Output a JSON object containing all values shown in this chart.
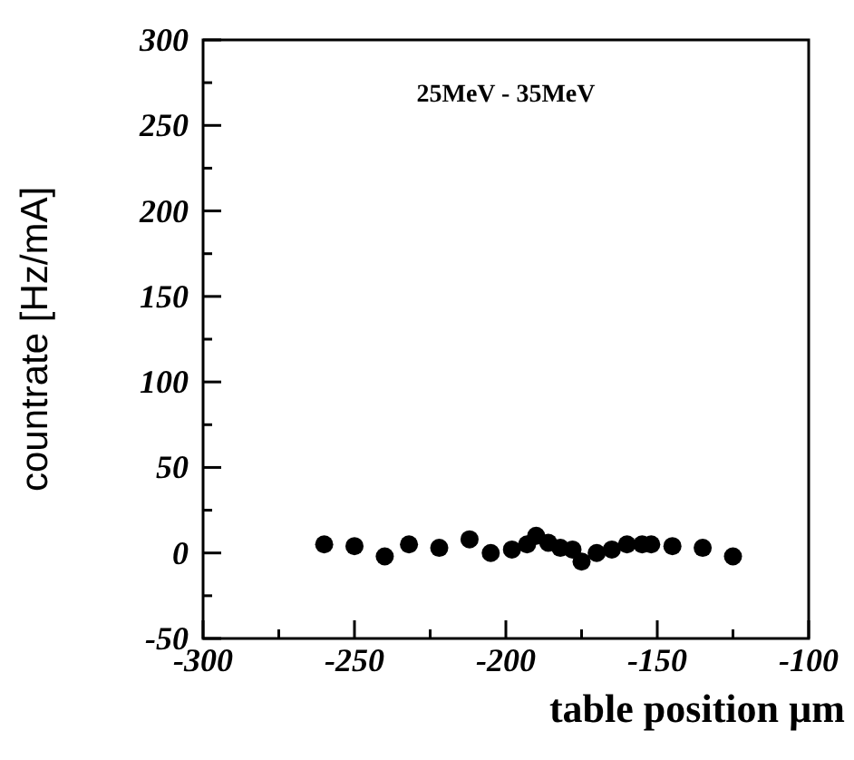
{
  "chart_data": {
    "type": "scatter",
    "xlabel": "table position µm",
    "ylabel": "countrate [Hz/mA]",
    "annotations": [
      "25MeV - 35MeV"
    ],
    "x": [
      -260,
      -250,
      -240,
      -232,
      -222,
      -212,
      -205,
      -198,
      -193,
      -190,
      -186,
      -182,
      -178,
      -175,
      -170,
      -165,
      -160,
      -155,
      -152,
      -145,
      -135,
      -125
    ],
    "values": [
      5,
      4,
      -2,
      5,
      3,
      8,
      0,
      2,
      5,
      10,
      6,
      3,
      2,
      -5,
      0,
      2,
      5,
      5,
      5,
      4,
      3,
      -2
    ],
    "color": "#000000",
    "marker": "circle",
    "xlim": [
      -300,
      -100
    ],
    "xticks": [
      -300,
      {
        "value": -275,
        "label": null
      },
      -250,
      {
        "value": -225,
        "label": null
      },
      -200,
      {
        "value": -175,
        "label": null
      },
      -150,
      {
        "value": -125,
        "label": null
      },
      -100
    ],
    "ylim": [
      -50,
      300
    ],
    "yticks": [
      -50,
      {
        "value": -25,
        "label": null
      },
      0,
      {
        "value": 25,
        "label": null
      },
      50,
      {
        "value": 75,
        "label": null
      },
      100,
      {
        "value": 125,
        "label": null
      },
      150,
      {
        "value": 175,
        "label": null
      },
      200,
      {
        "value": 225,
        "label": null
      },
      250,
      {
        "value": 275,
        "label": null
      },
      300
    ],
    "grid": false
  }
}
